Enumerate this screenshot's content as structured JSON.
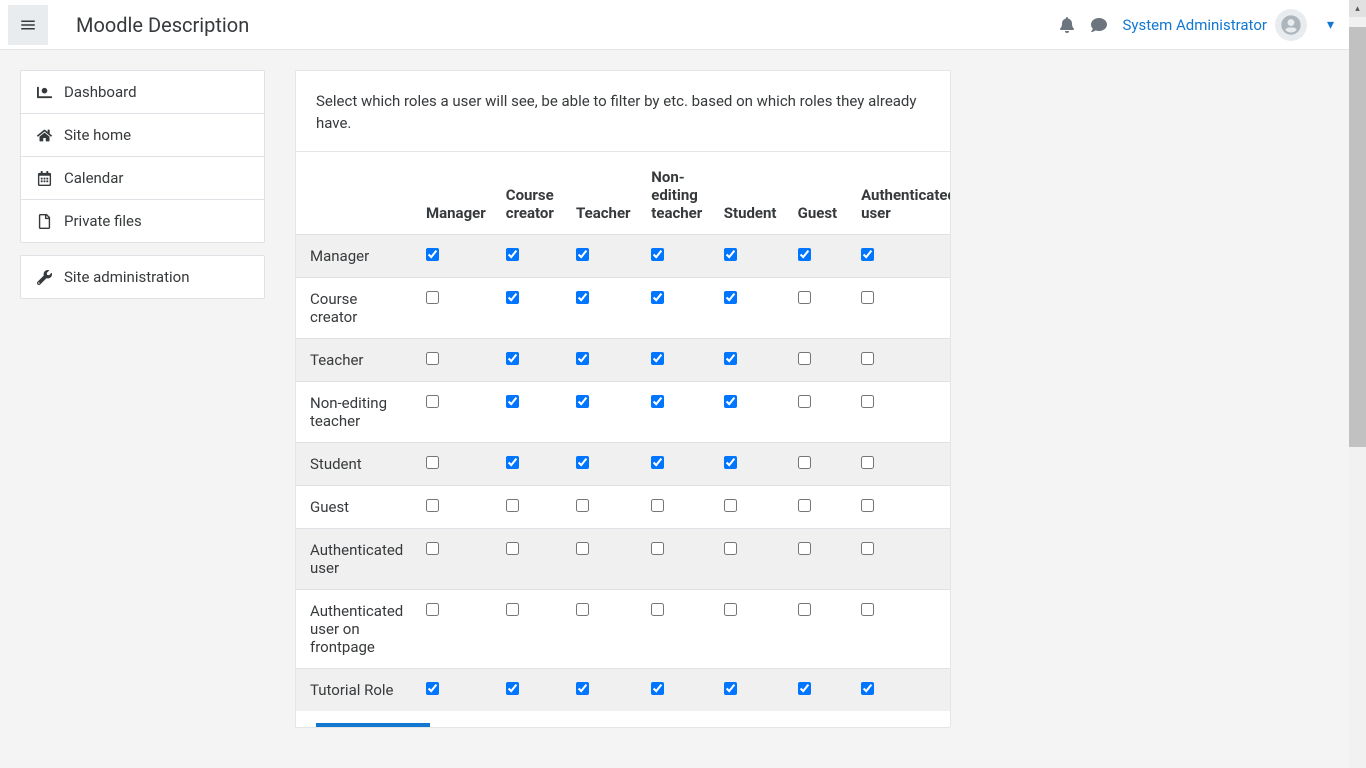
{
  "site_name": "Moodle Description",
  "user": {
    "name": "System Administrator"
  },
  "sidebar": {
    "group1": [
      {
        "label": "Dashboard",
        "icon": "dashboard"
      },
      {
        "label": "Site home",
        "icon": "home"
      },
      {
        "label": "Calendar",
        "icon": "calendar"
      },
      {
        "label": "Private files",
        "icon": "file"
      }
    ],
    "group2": [
      {
        "label": "Site administration",
        "icon": "wrench"
      }
    ]
  },
  "content": {
    "description": "Select which roles a user will see, be able to filter by etc. based on which roles they already have.",
    "columns": [
      "Manager",
      "Course creator",
      "Teacher",
      "Non-editing teacher",
      "Student",
      "Guest",
      "Authenticated user"
    ],
    "rows": [
      {
        "label": "Manager",
        "checks": [
          true,
          true,
          true,
          true,
          true,
          true,
          true
        ]
      },
      {
        "label": "Course creator",
        "checks": [
          false,
          true,
          true,
          true,
          true,
          false,
          false
        ]
      },
      {
        "label": "Teacher",
        "checks": [
          false,
          true,
          true,
          true,
          true,
          false,
          false
        ]
      },
      {
        "label": "Non-editing teacher",
        "checks": [
          false,
          true,
          true,
          true,
          true,
          false,
          false
        ]
      },
      {
        "label": "Student",
        "checks": [
          false,
          true,
          true,
          true,
          true,
          false,
          false
        ]
      },
      {
        "label": "Guest",
        "checks": [
          false,
          false,
          false,
          false,
          false,
          false,
          false
        ]
      },
      {
        "label": "Authenticated user",
        "checks": [
          false,
          false,
          false,
          false,
          false,
          false,
          false
        ]
      },
      {
        "label": "Authenticated user on frontpage",
        "checks": [
          false,
          false,
          false,
          false,
          false,
          false,
          false
        ]
      },
      {
        "label": "Tutorial Role",
        "checks": [
          true,
          true,
          true,
          true,
          true,
          true,
          true
        ]
      }
    ]
  },
  "colors": {
    "link": "#1177d1",
    "border": "#dee2e6",
    "striped_row": "#f0f0f0"
  }
}
